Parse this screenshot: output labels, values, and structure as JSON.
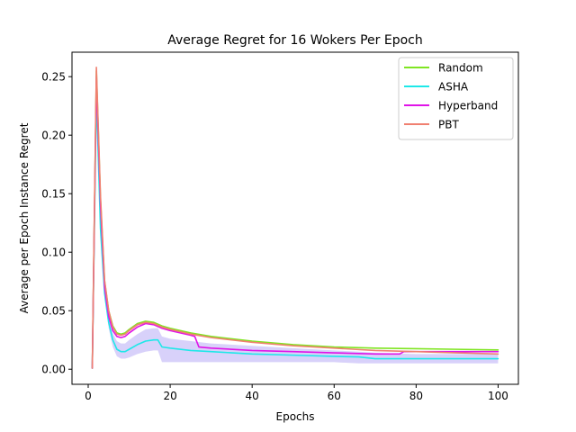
{
  "chart_data": {
    "type": "line",
    "title": "Average Regret for 16 Wokers Per Epoch",
    "xlabel": "Epochs",
    "ylabel": "Average per Epoch Instance Regret",
    "xlim": [
      -3.95,
      104.95
    ],
    "ylim": [
      -0.0129,
      0.2709
    ],
    "xticks": [
      0,
      20,
      40,
      60,
      80,
      100
    ],
    "xtick_labels": [
      "0",
      "20",
      "40",
      "60",
      "80",
      "100"
    ],
    "yticks": [
      0.0,
      0.05,
      0.1,
      0.15,
      0.2,
      0.25
    ],
    "ytick_labels": [
      "0.00",
      "0.05",
      "0.10",
      "0.15",
      "0.20",
      "0.25"
    ],
    "grid": false,
    "legend_position": "top-right",
    "series": [
      {
        "name": "Random",
        "color": "#7fe522",
        "x": [
          1,
          2,
          3,
          4,
          5,
          6,
          7,
          8,
          9,
          10,
          12,
          14,
          16,
          18,
          20,
          25,
          30,
          40,
          50,
          60,
          70,
          80,
          90,
          100
        ],
        "values": [
          0.001,
          0.255,
          0.145,
          0.075,
          0.05,
          0.037,
          0.031,
          0.03,
          0.031,
          0.034,
          0.039,
          0.041,
          0.04,
          0.037,
          0.035,
          0.031,
          0.028,
          0.024,
          0.021,
          0.019,
          0.018,
          0.0175,
          0.017,
          0.0165
        ]
      },
      {
        "name": "ASHA",
        "color": "#1ee8e8",
        "band_color": "#8f7cf0",
        "x": [
          1,
          2,
          3,
          4,
          5,
          6,
          7,
          8,
          9,
          10,
          12,
          14,
          16,
          17,
          18,
          20,
          25,
          30,
          40,
          50,
          60,
          66,
          70,
          80,
          90,
          100
        ],
        "values": [
          0.001,
          0.235,
          0.12,
          0.065,
          0.04,
          0.025,
          0.017,
          0.015,
          0.015,
          0.017,
          0.021,
          0.024,
          0.025,
          0.025,
          0.019,
          0.018,
          0.016,
          0.015,
          0.013,
          0.012,
          0.011,
          0.0105,
          0.009,
          0.009,
          0.009,
          0.009
        ],
        "lower": [
          0.0,
          0.23,
          0.115,
          0.06,
          0.035,
          0.019,
          0.011,
          0.009,
          0.009,
          0.01,
          0.013,
          0.015,
          0.016,
          0.016,
          0.006,
          0.006,
          0.006,
          0.006,
          0.006,
          0.006,
          0.006,
          0.005,
          0.005,
          0.005,
          0.005,
          0.005
        ],
        "upper": [
          0.003,
          0.24,
          0.125,
          0.07,
          0.045,
          0.031,
          0.024,
          0.022,
          0.022,
          0.025,
          0.03,
          0.034,
          0.035,
          0.035,
          0.028,
          0.026,
          0.024,
          0.022,
          0.02,
          0.018,
          0.016,
          0.015,
          0.014,
          0.013,
          0.013,
          0.013
        ]
      },
      {
        "name": "Hyperband",
        "color": "#e014e8",
        "x": [
          1,
          2,
          3,
          4,
          5,
          6,
          7,
          8,
          9,
          10,
          12,
          14,
          16,
          18,
          20,
          25,
          26,
          27,
          30,
          40,
          50,
          60,
          70,
          76,
          77,
          80,
          90,
          100
        ],
        "values": [
          0.001,
          0.25,
          0.14,
          0.07,
          0.045,
          0.033,
          0.028,
          0.027,
          0.028,
          0.031,
          0.036,
          0.039,
          0.038,
          0.035,
          0.033,
          0.029,
          0.028,
          0.019,
          0.018,
          0.016,
          0.015,
          0.014,
          0.013,
          0.013,
          0.015,
          0.015,
          0.015,
          0.015
        ]
      },
      {
        "name": "PBT",
        "color": "#f08070",
        "x": [
          1,
          2,
          3,
          4,
          5,
          6,
          7,
          8,
          9,
          10,
          12,
          14,
          16,
          18,
          20,
          25,
          30,
          40,
          50,
          60,
          70,
          80,
          90,
          100
        ],
        "values": [
          0.001,
          0.258,
          0.148,
          0.076,
          0.05,
          0.036,
          0.03,
          0.029,
          0.03,
          0.033,
          0.038,
          0.04,
          0.039,
          0.036,
          0.034,
          0.03,
          0.027,
          0.023,
          0.02,
          0.018,
          0.016,
          0.015,
          0.014,
          0.013
        ]
      }
    ]
  }
}
